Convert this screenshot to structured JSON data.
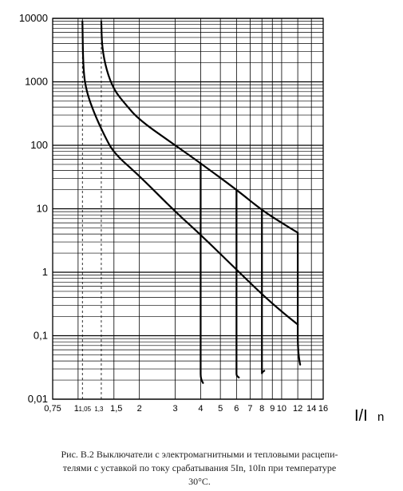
{
  "chart_data": {
    "type": "line",
    "y_scale": "log",
    "x_scale": "log",
    "ylim": [
      0.01,
      10000
    ],
    "xlim": [
      0.75,
      16
    ],
    "grid": true,
    "y_tick_labels": [
      {
        "value": 10000,
        "label": "10000"
      },
      {
        "value": 1000,
        "label": "1000"
      },
      {
        "value": 100,
        "label": "100"
      },
      {
        "value": 10,
        "label": "10"
      },
      {
        "value": 1,
        "label": "1"
      },
      {
        "value": 0.1,
        "label": "0,1"
      },
      {
        "value": 0.01,
        "label": "0,01"
      }
    ],
    "x_tick_labels": [
      {
        "value": 0.75,
        "label": "0,75"
      },
      {
        "value": 1,
        "label": "1"
      },
      {
        "value": 1.05,
        "label": "1,05",
        "small": true
      },
      {
        "value": 1.3,
        "label": "1,3",
        "small": true
      },
      {
        "value": 1.5,
        "label": "1,5"
      },
      {
        "value": 2,
        "label": "2"
      },
      {
        "value": 3,
        "label": "3"
      },
      {
        "value": 4,
        "label": "4"
      },
      {
        "value": 5,
        "label": "5"
      },
      {
        "value": 6,
        "label": "6"
      },
      {
        "value": 7,
        "label": "7"
      },
      {
        "value": 8,
        "label": "8"
      },
      {
        "value": 9,
        "label": "9"
      },
      {
        "value": 10,
        "label": "10"
      },
      {
        "value": 12,
        "label": "12"
      },
      {
        "value": 14,
        "label": "14"
      },
      {
        "value": 16,
        "label": "16"
      }
    ],
    "x_axis_title": "I/I",
    "x_axis_title_sub": "n",
    "dashed_markers": [
      1.05,
      1.3
    ],
    "series": [
      {
        "points": [
          [
            1.05,
            9000
          ],
          [
            1.06,
            1500
          ],
          [
            1.1,
            700
          ],
          [
            1.2,
            320
          ],
          [
            1.35,
            140
          ],
          [
            1.5,
            75
          ],
          [
            2,
            33
          ],
          [
            3,
            9
          ],
          [
            4,
            3.9
          ],
          [
            6,
            1.1
          ],
          [
            8,
            0.45
          ],
          [
            10,
            0.24
          ],
          [
            12,
            0.15
          ]
        ]
      },
      {
        "points": [
          [
            1.3,
            9000
          ],
          [
            1.31,
            3500
          ],
          [
            1.38,
            1500
          ],
          [
            1.5,
            750
          ],
          [
            1.7,
            450
          ],
          [
            2,
            250
          ],
          [
            3,
            100
          ],
          [
            4,
            52
          ],
          [
            6,
            20
          ],
          [
            8,
            9.5
          ],
          [
            10,
            6
          ],
          [
            12,
            4.2
          ]
        ]
      }
    ],
    "trip_branches": [
      {
        "x": 4,
        "from": 52,
        "to": 0.025,
        "end": 0.018
      },
      {
        "x": 6,
        "from": 20,
        "to": 0.025,
        "end": 0.022
      },
      {
        "x": 8,
        "from": 9.5,
        "to": 0.025,
        "end": 0.028
      },
      {
        "x": 12,
        "from": 4.2,
        "to": 0.1,
        "end": 0.035
      }
    ]
  },
  "caption": {
    "line1": "Рис. В.2 Выключатели с электромагнитными и тепловыми расцепи-",
    "line2": "телями с уставкой по току срабатывания 5In, 10In при температуре",
    "line3": "30°С."
  }
}
